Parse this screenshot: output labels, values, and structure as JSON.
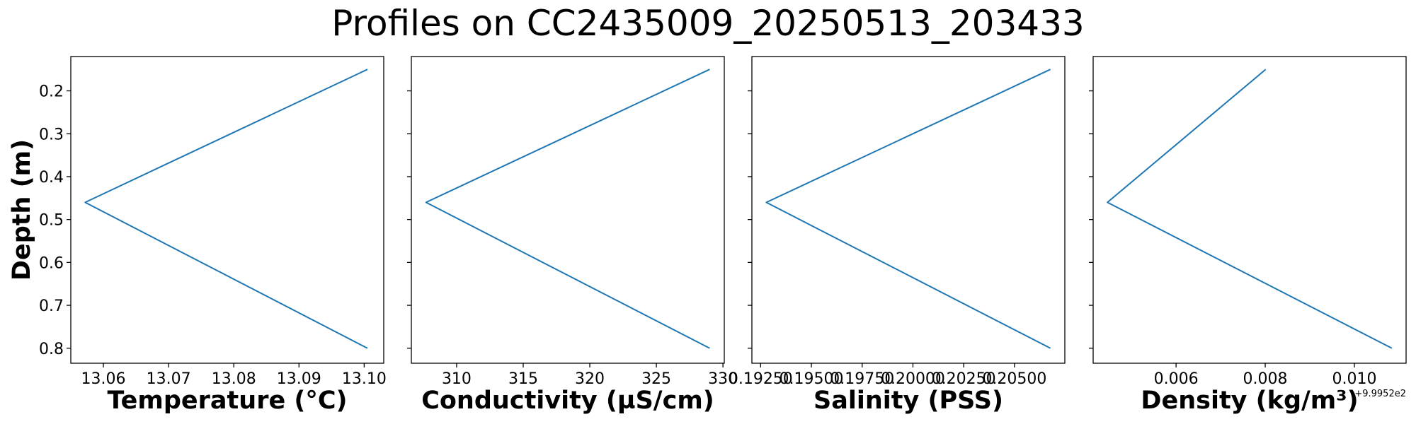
{
  "title": "Profiles on CC2435009_20250513_203433",
  "line_color": "#1f77b4",
  "chart_data": [
    {
      "type": "line",
      "xlabel": "Temperature (°C)",
      "ylabel": "Depth (m)",
      "x": [
        13.1005,
        13.0572,
        13.1005
      ],
      "y": [
        0.15,
        0.46,
        0.8
      ],
      "xlim": [
        13.055,
        13.103
      ],
      "ylim": [
        0.835,
        0.12
      ],
      "xticks": [
        13.06,
        13.07,
        13.08,
        13.09,
        13.1
      ],
      "xtick_labels": [
        "13.06",
        "13.07",
        "13.08",
        "13.09",
        "13.10"
      ],
      "yticks": [
        0.2,
        0.3,
        0.4,
        0.5,
        0.6,
        0.7,
        0.8
      ],
      "ytick_labels": [
        "0.2",
        "0.3",
        "0.4",
        "0.5",
        "0.6",
        "0.7",
        "0.8"
      ],
      "offset_text": ""
    },
    {
      "type": "line",
      "xlabel": "Conductivity (µS/cm)",
      "ylabel": "",
      "x": [
        329.0,
        307.7,
        329.0
      ],
      "y": [
        0.15,
        0.46,
        0.8
      ],
      "xlim": [
        306.6,
        330.1
      ],
      "ylim": [
        0.835,
        0.12
      ],
      "xticks": [
        310,
        315,
        320,
        325,
        330
      ],
      "xtick_labels": [
        "310",
        "315",
        "320",
        "325",
        "330"
      ],
      "yticks": [
        0.2,
        0.3,
        0.4,
        0.5,
        0.6,
        0.7,
        0.8
      ],
      "ytick_labels": [],
      "offset_text": ""
    },
    {
      "type": "line",
      "xlabel": "Salinity (PSS)",
      "ylabel": "",
      "x": [
        0.20677,
        0.19278,
        0.20677
      ],
      "y": [
        0.15,
        0.46,
        0.8
      ],
      "xlim": [
        0.19207,
        0.20748
      ],
      "ylim": [
        0.835,
        0.12
      ],
      "xticks": [
        0.1925,
        0.195,
        0.1975,
        0.2,
        0.2025,
        0.205
      ],
      "xtick_labels": [
        "0.19250",
        "0.19500",
        "0.19750",
        "0.20000",
        "0.20250",
        "0.20500"
      ],
      "yticks": [
        0.2,
        0.3,
        0.4,
        0.5,
        0.6,
        0.7,
        0.8
      ],
      "ytick_labels": [],
      "offset_text": ""
    },
    {
      "type": "line",
      "xlabel": "Density (kg/m³)",
      "ylabel": "",
      "x": [
        0.00801,
        0.00446,
        0.01084
      ],
      "y": [
        0.15,
        0.46,
        0.8
      ],
      "xlim": [
        0.00414,
        0.01116
      ],
      "ylim": [
        0.835,
        0.12
      ],
      "xticks": [
        0.006,
        0.008,
        0.01
      ],
      "xtick_labels": [
        "0.006",
        "0.008",
        "0.010"
      ],
      "yticks": [
        0.2,
        0.3,
        0.4,
        0.5,
        0.6,
        0.7,
        0.8
      ],
      "ytick_labels": [],
      "offset_text": "+9.9952e2"
    }
  ]
}
